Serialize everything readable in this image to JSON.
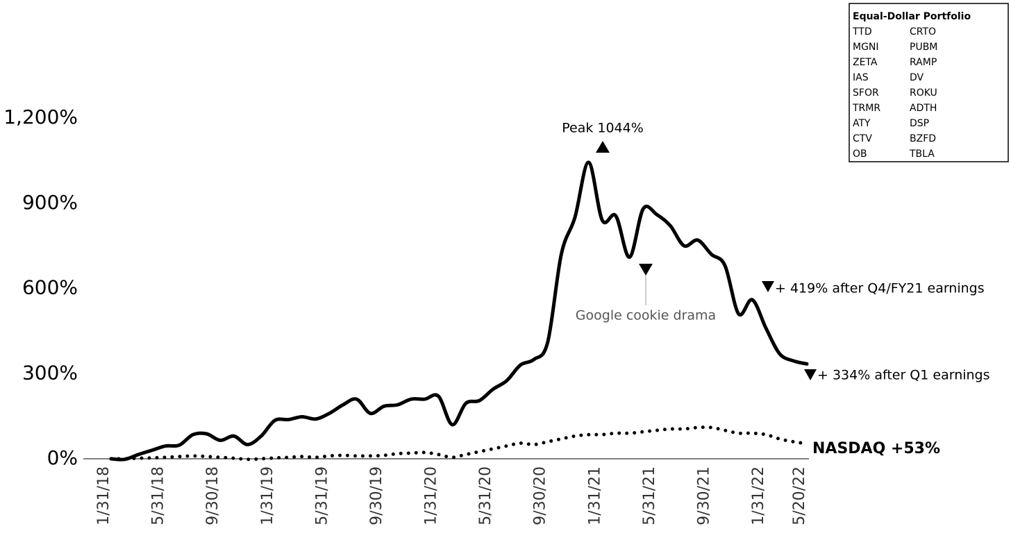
{
  "chart_data": {
    "type": "line",
    "categories": [
      "1/31/18",
      null,
      null,
      null,
      "5/31/18",
      null,
      null,
      null,
      "9/30/18",
      null,
      null,
      null,
      "1/31/19",
      null,
      null,
      null,
      "5/31/19",
      null,
      null,
      null,
      "9/30/19",
      null,
      null,
      null,
      "1/31/20",
      null,
      null,
      null,
      "5/31/20",
      null,
      null,
      null,
      "9/30/20",
      null,
      null,
      null,
      "1/31/21",
      null,
      null,
      null,
      "5/31/21",
      null,
      null,
      null,
      "9/30/21",
      null,
      null,
      null,
      "1/31/22",
      null,
      null,
      "5/20/22"
    ],
    "series": [
      {
        "color": "#000000",
        "style": "solid",
        "values": [
          0,
          -2,
          15,
          30,
          45,
          48,
          85,
          88,
          65,
          80,
          50,
          80,
          135,
          138,
          148,
          140,
          160,
          190,
          210,
          160,
          185,
          190,
          210,
          210,
          220,
          120,
          195,
          205,
          245,
          275,
          330,
          350,
          410,
          720,
          850,
          1044,
          840,
          855,
          710,
          880,
          860,
          820,
          750,
          770,
          720,
          680,
          510,
          560,
          460,
          370,
          345,
          334
        ]
      },
      {
        "color": "#000000",
        "style": "dotted",
        "values": [
          0,
          0,
          2,
          3,
          5,
          8,
          10,
          8,
          5,
          2,
          -2,
          0,
          3,
          5,
          8,
          5,
          10,
          12,
          10,
          10,
          12,
          18,
          20,
          22,
          15,
          5,
          15,
          25,
          35,
          45,
          55,
          50,
          60,
          70,
          80,
          85,
          85,
          90,
          90,
          95,
          100,
          105,
          105,
          110,
          110,
          100,
          90,
          90,
          85,
          70,
          60,
          53
        ]
      }
    ],
    "ylim": [
      0,
      1200
    ],
    "yticks": [
      {
        "value": 0,
        "label": "0%"
      },
      {
        "value": 300,
        "label": "300%"
      },
      {
        "value": 600,
        "label": "600%"
      },
      {
        "value": 900,
        "label": "900%"
      },
      {
        "value": 1200,
        "label": "1,200%"
      }
    ],
    "annotations": {
      "peak": "Peak 1044%",
      "cookie": "Google cookie drama",
      "q4": "+ 419% after Q4/FY21 earnings",
      "q1": "+ 334% after Q1 earnings",
      "nasdaq": "NASDAQ +53%"
    },
    "legend_box": {
      "title": "Equal-Dollar Portfolio",
      "rows": [
        [
          "TTD",
          "CRTO"
        ],
        [
          "MGNI",
          "PUBM"
        ],
        [
          "ZETA",
          "RAMP"
        ],
        [
          "IAS",
          "DV"
        ],
        [
          "SFOR",
          "ROKU"
        ],
        [
          "TRMR",
          "ADTH"
        ],
        [
          "ATY",
          "DSP"
        ],
        [
          "CTV",
          "BZFD"
        ],
        [
          "OB",
          "TBLA"
        ]
      ]
    }
  }
}
